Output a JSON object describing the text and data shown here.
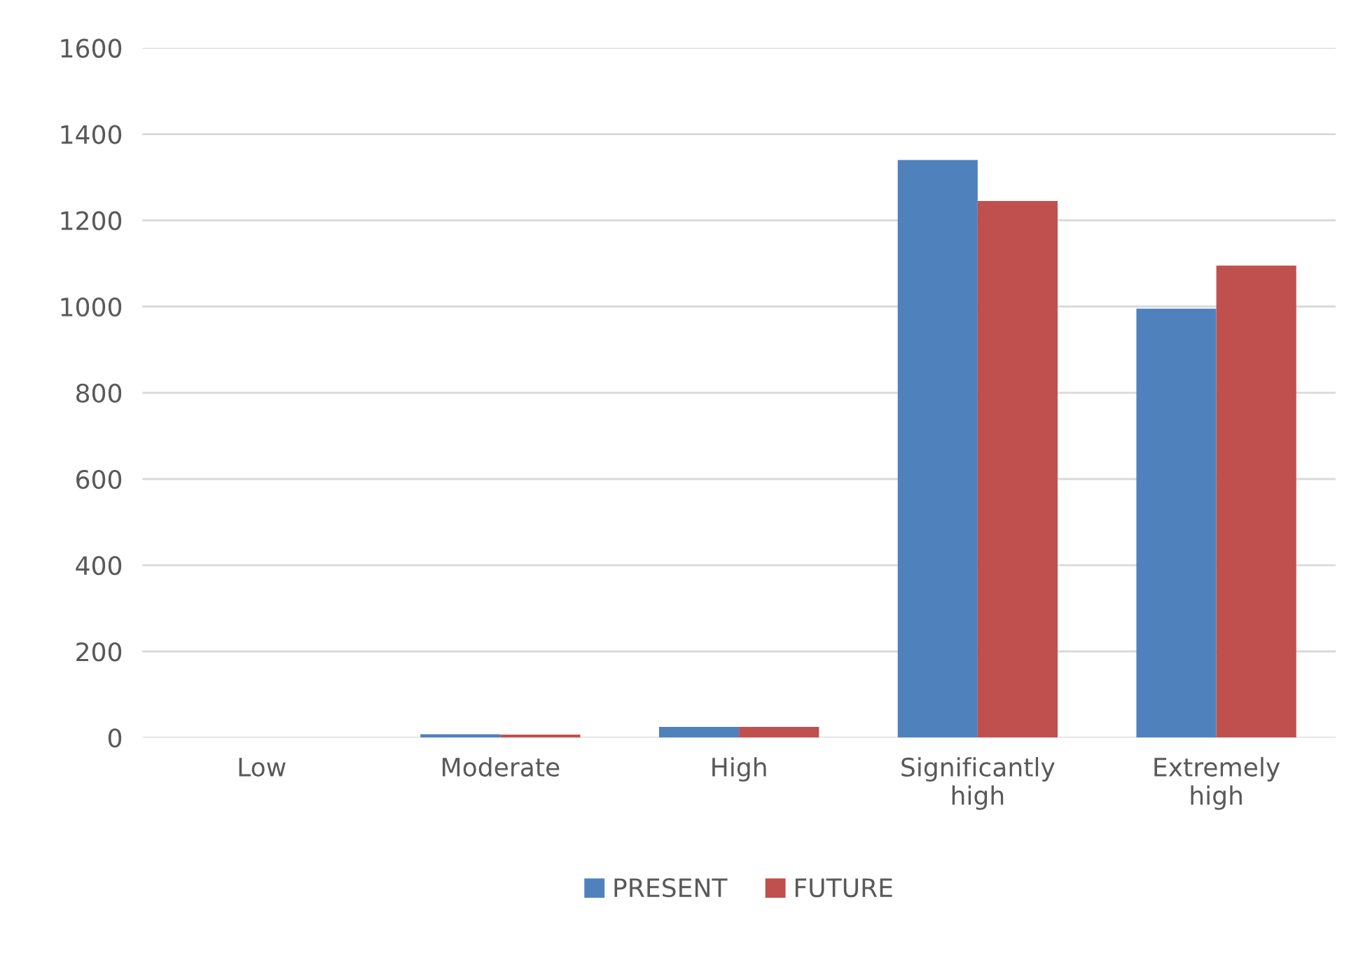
{
  "chart_data": {
    "type": "bar",
    "categories": [
      "Low",
      "Moderate",
      "High",
      "Significantly\nhigh",
      "Extremely\nhigh"
    ],
    "series": [
      {
        "name": "PRESENT",
        "color": "#4f81bd",
        "values": [
          0,
          8,
          25,
          1340,
          995
        ]
      },
      {
        "name": "FUTURE",
        "color": "#c0504d",
        "values": [
          0,
          7,
          25,
          1245,
          1095
        ]
      }
    ],
    "ylim": [
      0,
      1600
    ],
    "yticks": [
      0,
      200,
      400,
      600,
      800,
      1000,
      1200,
      1400,
      1600
    ],
    "grid": "y",
    "legend": "bottom"
  }
}
